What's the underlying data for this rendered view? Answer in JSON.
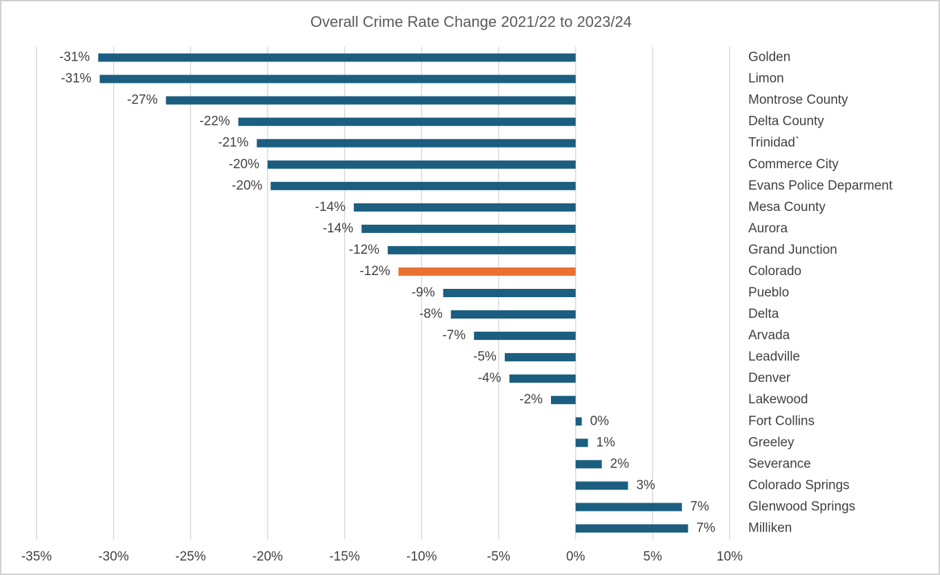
{
  "chart_data": {
    "type": "hbar",
    "title": "Overall Crime Rate Change 2021/22 to 2023/24",
    "categories": [
      "Golden",
      "Limon",
      "Montrose County",
      "Delta County",
      "Trinidad`",
      "Commerce City",
      "Evans Police Deparment",
      "Mesa County",
      "Aurora",
      "Grand Junction",
      "Colorado",
      "Pueblo",
      "Delta",
      "Arvada",
      "Leadville",
      "Denver",
      "Lakewood",
      "Fort Collins",
      "Greeley",
      "Severance",
      "Colorado Springs",
      "Glenwood Springs",
      "Milliken"
    ],
    "values": [
      -31.0,
      -30.9,
      -26.6,
      -21.9,
      -20.7,
      -20.0,
      -19.8,
      -14.4,
      -13.9,
      -12.2,
      -11.5,
      -8.6,
      -8.1,
      -6.6,
      -4.6,
      -4.3,
      -1.6,
      0.4,
      0.8,
      1.7,
      3.4,
      6.9,
      7.3
    ],
    "value_labels": [
      "-31%",
      "-31%",
      "-27%",
      "-22%",
      "-21%",
      "-20%",
      "-20%",
      "-14%",
      "-14%",
      "-12%",
      "-12%",
      "-9%",
      "-8%",
      "-7%",
      "-5%",
      "-4%",
      "-2%",
      "0%",
      "1%",
      "2%",
      "3%",
      "7%",
      "7%"
    ],
    "colors": [
      "#1b5e80",
      "#1b5e80",
      "#1b5e80",
      "#1b5e80",
      "#1b5e80",
      "#1b5e80",
      "#1b5e80",
      "#1b5e80",
      "#1b5e80",
      "#1b5e80",
      "#e97132",
      "#1b5e80",
      "#1b5e80",
      "#1b5e80",
      "#1b5e80",
      "#1b5e80",
      "#1b5e80",
      "#1b5e80",
      "#1b5e80",
      "#1b5e80",
      "#1b5e80",
      "#1b5e80",
      "#1b5e80"
    ],
    "xlim": [
      -35,
      10
    ],
    "xticks": [
      {
        "value": -35,
        "label": "-35%"
      },
      {
        "value": -30,
        "label": "-30%"
      },
      {
        "value": -25,
        "label": "-25%"
      },
      {
        "value": -20,
        "label": "-20%"
      },
      {
        "value": -15,
        "label": "-15%"
      },
      {
        "value": -10,
        "label": "-10%"
      },
      {
        "value": -5,
        "label": "-5%"
      },
      {
        "value": 0,
        "label": "0%"
      },
      {
        "value": 5,
        "label": "5%"
      },
      {
        "value": 10,
        "label": "10%"
      }
    ],
    "grid": true
  }
}
